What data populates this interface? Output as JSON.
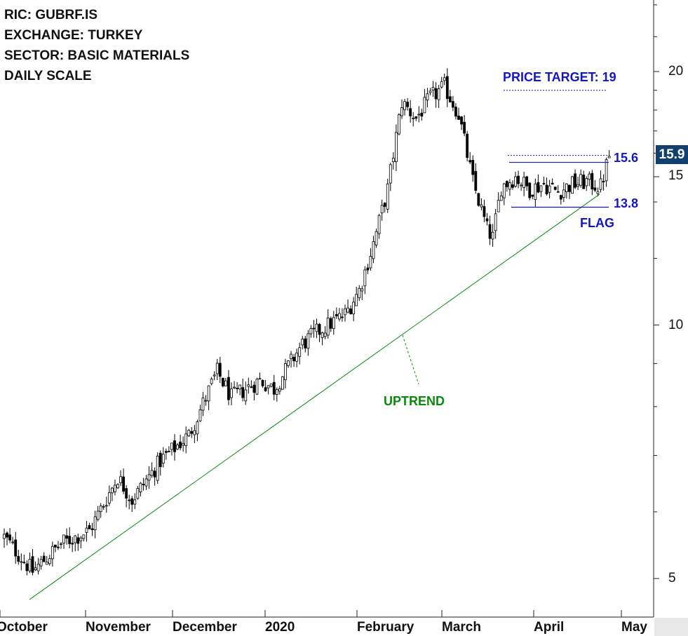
{
  "info": {
    "ric": "RIC: GUBRF.IS",
    "exchange": "EXCHANGE: TURKEY",
    "sector": "SECTOR: BASIC MATERIALS",
    "scale": "DAILY SCALE"
  },
  "annotations": {
    "price_target": "PRICE TARGET: 19",
    "upper_level": "15.6",
    "lower_level": "13.8",
    "pattern": "FLAG",
    "trend": "UPTREND",
    "last_price": "15.9"
  },
  "colors": {
    "annotation_blue": "#1515c8",
    "uptrend_green": "#0a8a0a",
    "badge_bg": "#12406e"
  },
  "chart_data": {
    "type": "candlestick",
    "y_scale": "log",
    "ylim": [
      4.6,
      25
    ],
    "y_ticks": [
      "5",
      "10",
      "15",
      "20"
    ],
    "y_tick_values": [
      5,
      10,
      15,
      20
    ],
    "x_ticks": [
      "October",
      "November",
      "December",
      "2020",
      "February",
      "March",
      "April",
      "May"
    ],
    "grid": false,
    "levels": {
      "resistance": 15.6,
      "support": 13.8,
      "target": 19,
      "last": 15.9
    },
    "uptrend_line": {
      "start": {
        "month": "October",
        "price": 4.72
      },
      "end": {
        "month": "April",
        "price": 14.3
      }
    },
    "anchors": [
      [
        0,
        5.6
      ],
      [
        10,
        5.1
      ],
      [
        20,
        5.5
      ],
      [
        30,
        5.7
      ],
      [
        40,
        6.6
      ],
      [
        45,
        6.2
      ],
      [
        55,
        6.9
      ],
      [
        65,
        7.4
      ],
      [
        75,
        8.8
      ],
      [
        80,
        8.2
      ],
      [
        90,
        8.6
      ],
      [
        95,
        8.4
      ],
      [
        105,
        9.5
      ],
      [
        110,
        9.8
      ],
      [
        120,
        10.3
      ],
      [
        125,
        11.0
      ],
      [
        130,
        12.5
      ],
      [
        135,
        14.5
      ],
      [
        140,
        18.4
      ],
      [
        145,
        17.6
      ],
      [
        150,
        18.6
      ],
      [
        155,
        19.2
      ],
      [
        160,
        17.8
      ],
      [
        165,
        14.8
      ],
      [
        170,
        13.0
      ],
      [
        172,
        12.7
      ],
      [
        175,
        14.6
      ],
      [
        180,
        15.0
      ],
      [
        185,
        14.5
      ],
      [
        190,
        14.7
      ],
      [
        195,
        14.4
      ],
      [
        200,
        14.7
      ],
      [
        205,
        14.8
      ],
      [
        210,
        14.6
      ],
      [
        213,
        15.9
      ]
    ],
    "candle_count": 214,
    "first_candle_index": 0,
    "last_candle_index": 213
  }
}
